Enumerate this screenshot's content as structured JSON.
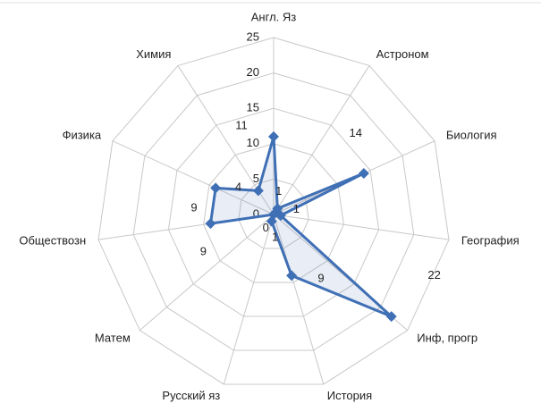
{
  "chart_data": {
    "type": "radar",
    "categories": [
      "Англ. Яз",
      "Астроном",
      "Биология",
      "География",
      "Инф, прогр",
      "История",
      "Русский яз",
      "Матем",
      "Обществозн",
      "Физика",
      "Химия"
    ],
    "values": [
      11,
      1,
      14,
      1,
      22,
      9,
      1,
      0,
      9,
      9,
      4
    ],
    "color": "#3f6fb5",
    "ylim": [
      0,
      25
    ],
    "yticks": [
      0,
      5,
      10,
      15,
      20,
      25
    ],
    "grid": true
  }
}
